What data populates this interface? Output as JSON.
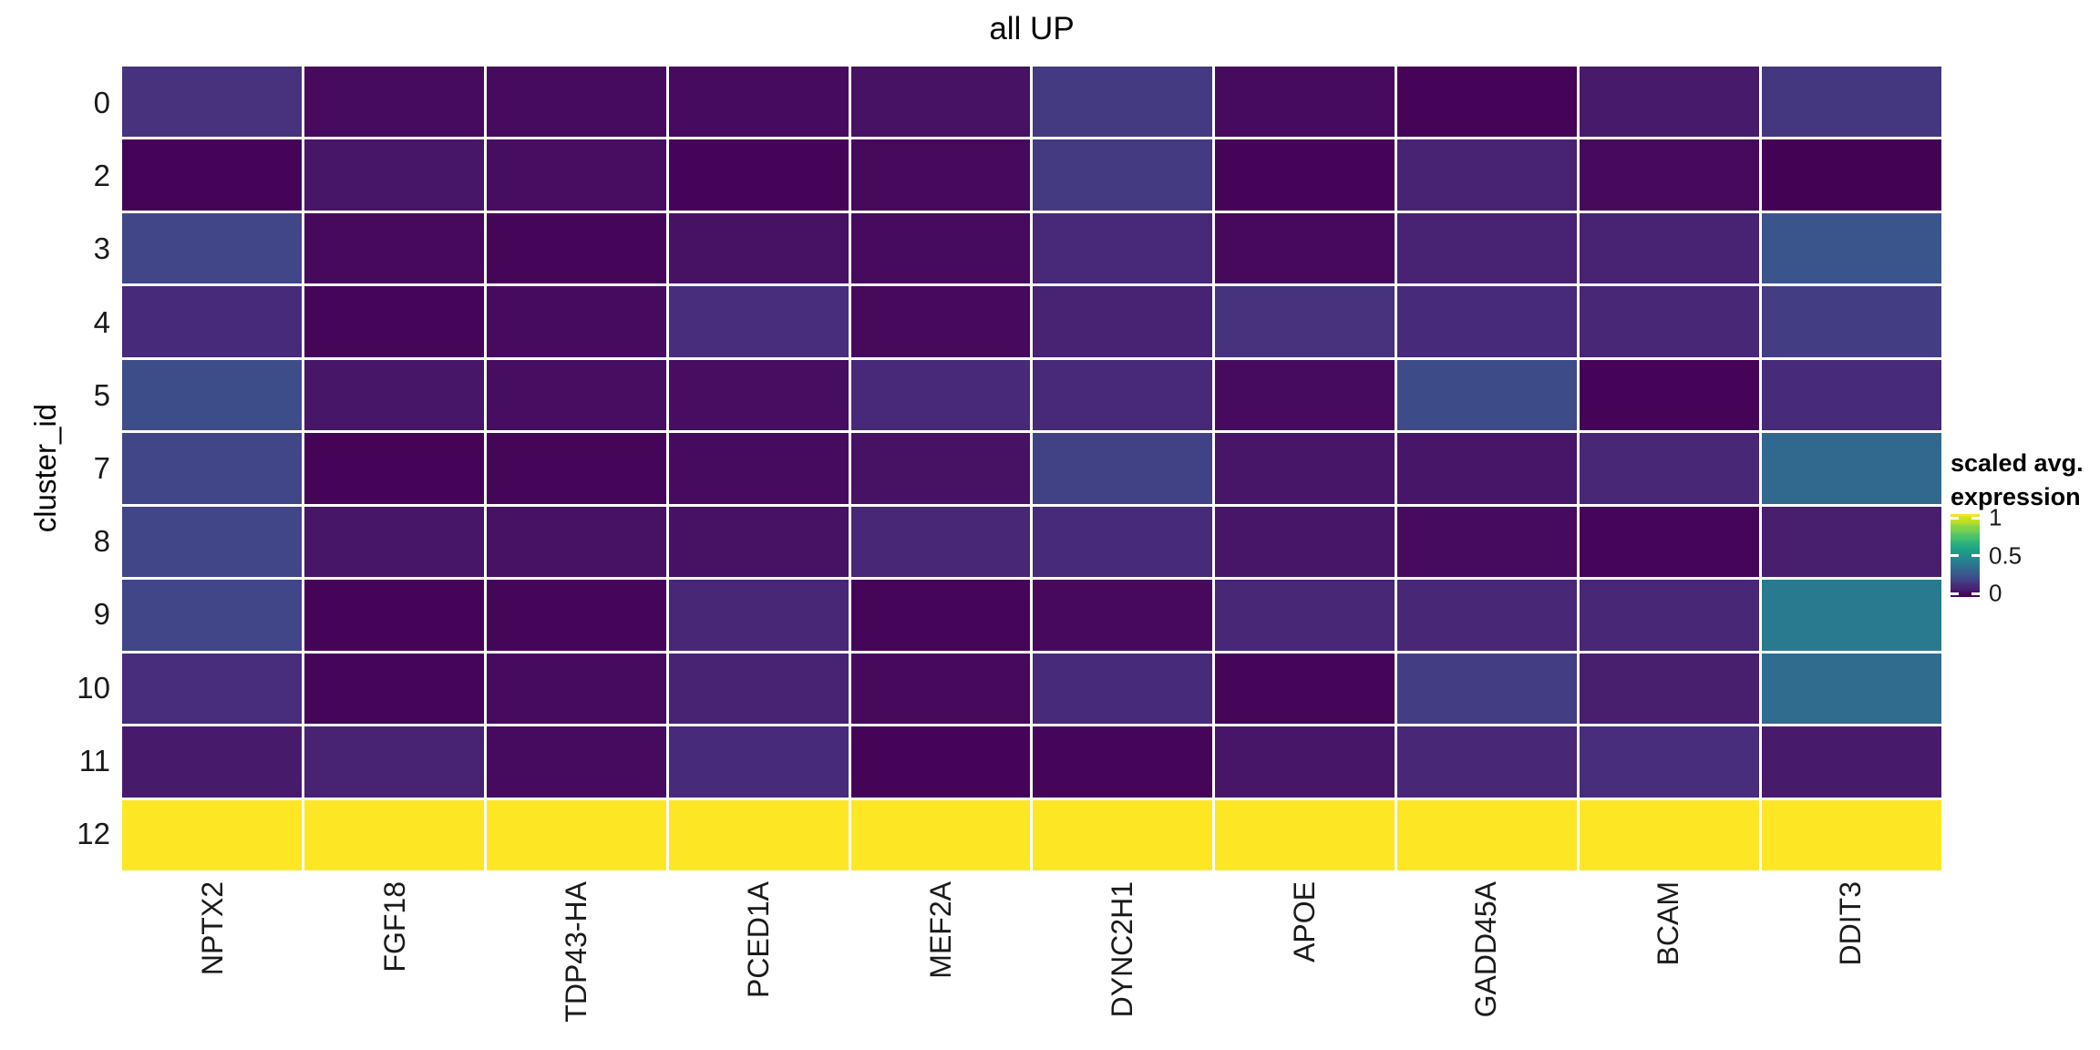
{
  "figure": {
    "title": "all UP",
    "y_axis_title": "cluster_id"
  },
  "legend": {
    "title_line1": "scaled avg.",
    "title_line2": "expression",
    "ticks": [
      {
        "label": "1",
        "value": 1
      },
      {
        "label": "0.5",
        "value": 0.5
      },
      {
        "label": "0",
        "value": 0
      }
    ]
  },
  "chart_data": {
    "type": "heatmap",
    "title": "all UP",
    "xlabel": "",
    "ylabel": "cluster_id",
    "legend_title": "scaled avg. expression",
    "legend_position": "right",
    "grid": false,
    "x_categories": [
      "NPTX2",
      "FGF18",
      "TDP43-HA",
      "PCED1A",
      "MEF2A",
      "DYNC2H1",
      "APOE",
      "GADD45A",
      "BCAM",
      "DDIT3"
    ],
    "y_categories": [
      "0",
      "2",
      "3",
      "4",
      "5",
      "7",
      "8",
      "9",
      "10",
      "11",
      "12"
    ],
    "color_scale": {
      "name": "viridis",
      "domain": [
        -0.045,
        1.05
      ],
      "stops": [
        "#440154",
        "#470d60",
        "#482475",
        "#472d7b",
        "#414487",
        "#3b528b",
        "#355f8d",
        "#2f6c8e",
        "#2a788e",
        "#258492",
        "#21918c",
        "#1e9c89",
        "#22a884",
        "#2cb17e",
        "#44bf70",
        "#52c569",
        "#7ad151",
        "#86d549",
        "#bddf26",
        "#cde11d",
        "#fde725"
      ]
    },
    "values": [
      [
        0.13,
        0.0,
        0.0,
        0.0,
        0.02,
        0.15,
        0.0,
        -0.03,
        0.04,
        0.14
      ],
      [
        -0.03,
        0.03,
        0.01,
        -0.03,
        -0.01,
        0.15,
        -0.03,
        0.06,
        -0.01,
        -0.04
      ],
      [
        0.18,
        -0.01,
        -0.02,
        0.02,
        0.0,
        0.09,
        -0.01,
        0.06,
        0.06,
        0.24
      ],
      [
        0.1,
        -0.02,
        0.0,
        0.12,
        -0.01,
        0.06,
        0.13,
        0.1,
        0.08,
        0.16
      ],
      [
        0.21,
        0.03,
        0.01,
        0.01,
        0.09,
        0.09,
        0.0,
        0.2,
        -0.03,
        0.1
      ],
      [
        0.18,
        -0.03,
        -0.02,
        0.0,
        0.02,
        0.17,
        0.03,
        0.03,
        0.08,
        0.32
      ],
      [
        0.18,
        0.03,
        0.02,
        0.02,
        0.08,
        0.11,
        0.03,
        0.0,
        -0.02,
        0.05
      ],
      [
        0.18,
        -0.03,
        -0.02,
        0.08,
        -0.02,
        -0.01,
        0.08,
        0.08,
        0.08,
        0.4
      ],
      [
        0.12,
        -0.02,
        0.0,
        0.06,
        -0.01,
        0.1,
        -0.02,
        0.16,
        0.05,
        0.34
      ],
      [
        0.04,
        0.06,
        0.0,
        0.1,
        -0.03,
        -0.02,
        0.03,
        0.08,
        0.12,
        0.04
      ],
      [
        1.05,
        1.05,
        1.05,
        1.05,
        1.05,
        1.05,
        1.05,
        1.05,
        1.05,
        1.05
      ]
    ]
  }
}
